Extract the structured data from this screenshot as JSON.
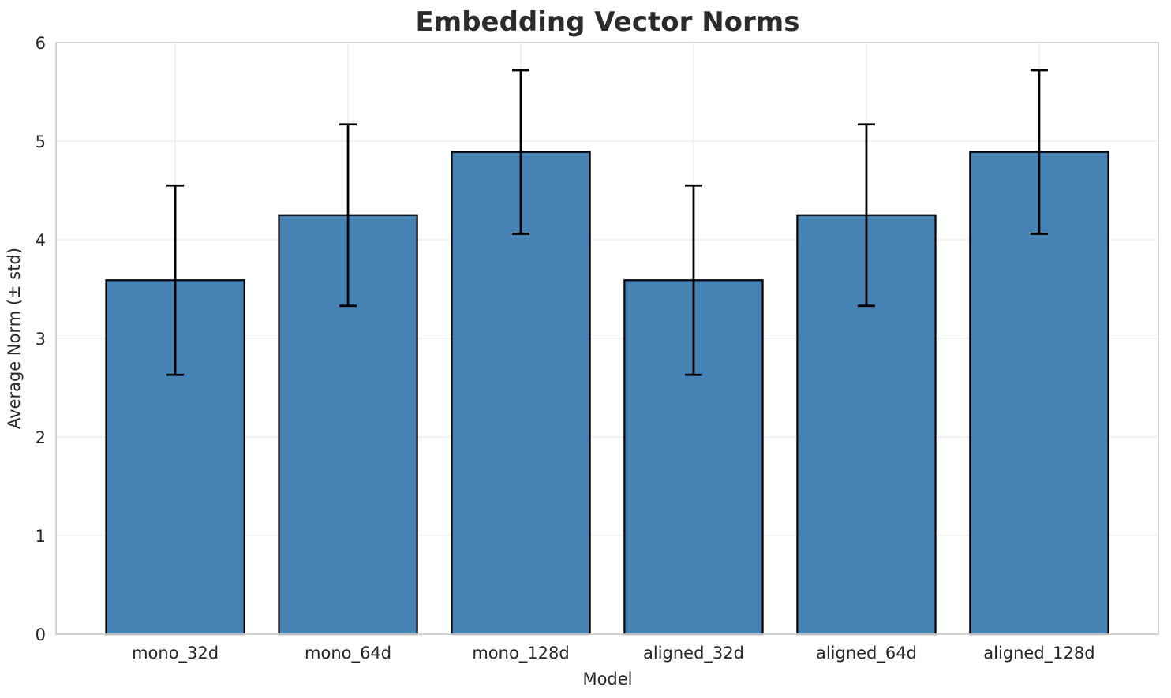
{
  "title": "Embedding Vector Norms",
  "chart_data": {
    "type": "bar",
    "title": "Embedding Vector Norms",
    "xlabel": "Model",
    "ylabel": "Average Norm (± std)",
    "categories": [
      "mono_32d",
      "mono_64d",
      "mono_128d",
      "aligned_32d",
      "aligned_64d",
      "aligned_128d"
    ],
    "values": [
      3.59,
      4.25,
      4.89,
      3.59,
      4.25,
      4.89
    ],
    "errors": [
      0.96,
      0.92,
      0.83,
      0.96,
      0.92,
      0.83
    ],
    "ylim": [
      0,
      6
    ],
    "yticks": [
      0,
      1,
      2,
      3,
      4,
      5,
      6
    ],
    "grid": true,
    "legend": "none",
    "bar_color": "#4682b4",
    "bar_edge_color": "#000000",
    "error_color": "#000000",
    "grid_color": "#ededed",
    "spine_color": "#cfcfcf",
    "text_color": "#262626",
    "title_color": "#2b2b2b"
  }
}
